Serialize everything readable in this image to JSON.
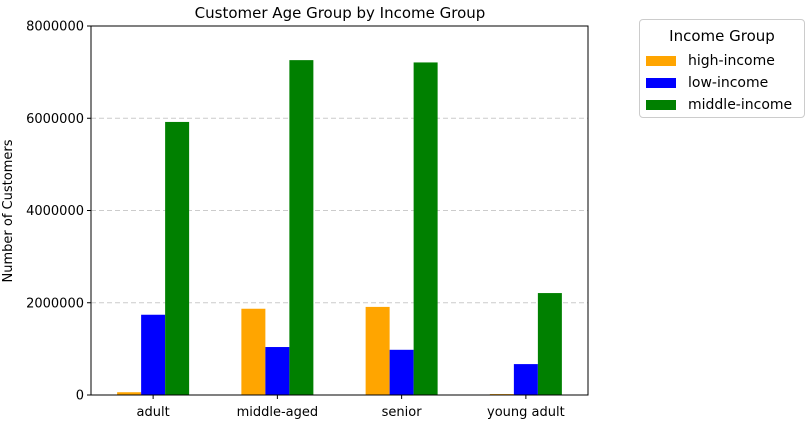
{
  "chart_data": {
    "type": "bar",
    "title": "Customer Age Group by Income Group",
    "xlabel": "",
    "ylabel": "Number of Customers",
    "ylim": [
      0,
      8000000
    ],
    "yticks": [
      "0",
      "2000000",
      "4000000",
      "6000000",
      "8000000"
    ],
    "ytick_values": [
      0,
      2000000,
      4000000,
      6000000,
      8000000
    ],
    "categories": [
      "adult",
      "middle-aged",
      "senior",
      "young adult"
    ],
    "grid": "y-dashed",
    "legend": {
      "title": "Income Group",
      "placement": "outside-top-right"
    },
    "series": [
      {
        "name": "high-income",
        "color": "#FFA500",
        "values": [
          60000,
          1870000,
          1910000,
          20000
        ]
      },
      {
        "name": "low-income",
        "color": "#0000FF",
        "values": [
          1740000,
          1040000,
          980000,
          670000
        ]
      },
      {
        "name": "middle-income",
        "color": "#008000",
        "values": [
          5920000,
          7260000,
          7210000,
          2210000
        ]
      }
    ]
  }
}
